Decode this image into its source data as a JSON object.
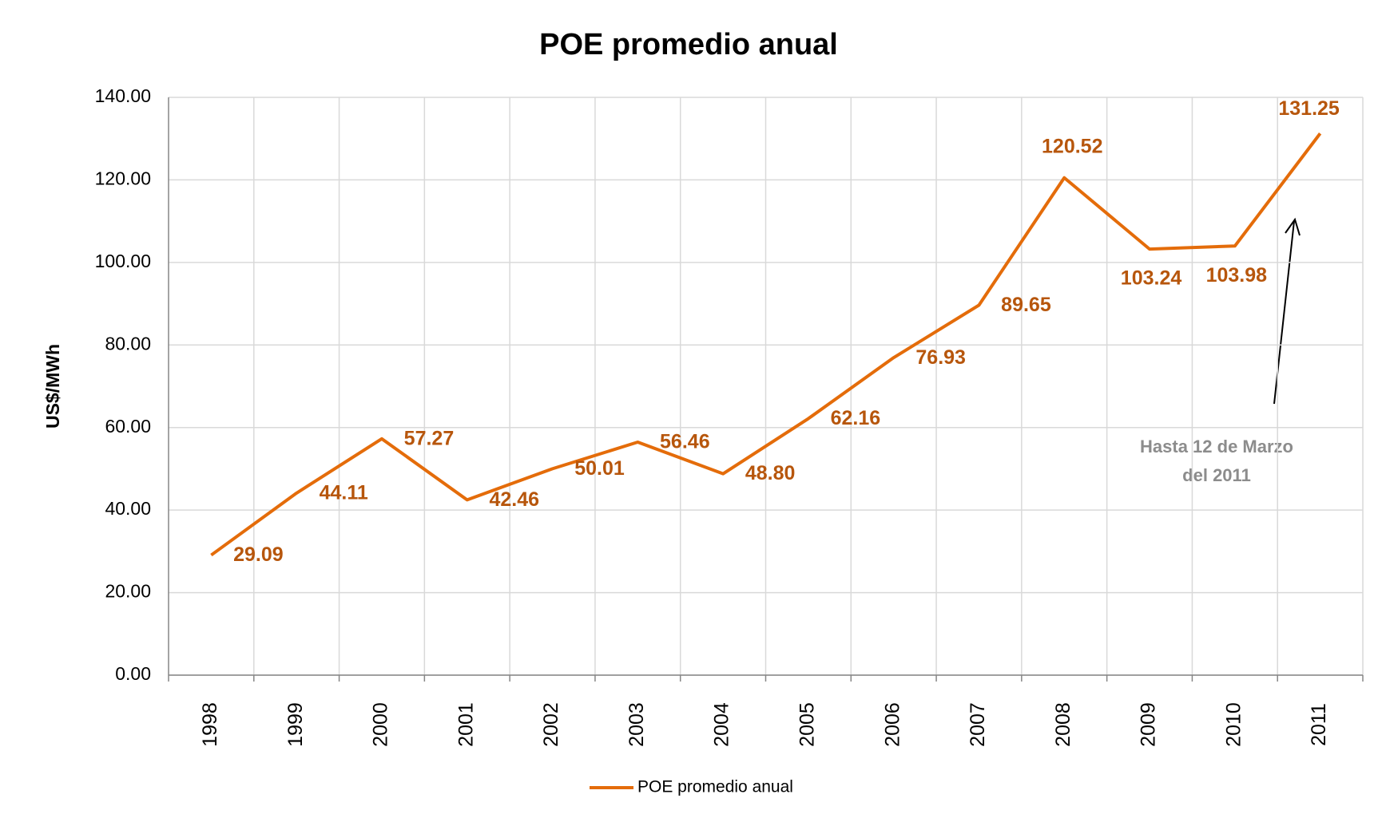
{
  "chart_data": {
    "type": "line",
    "title": "POE promedio anual",
    "ylabel": "US$/MWh",
    "categories": [
      "1998",
      "1999",
      "2000",
      "2001",
      "2002",
      "2003",
      "2004",
      "2005",
      "2006",
      "2007",
      "2008",
      "2009",
      "2010",
      "2011"
    ],
    "series": [
      {
        "name": "POE promedio anual",
        "color": "#e46c0a",
        "values": [
          29.09,
          44.11,
          57.27,
          42.46,
          50.01,
          56.46,
          48.8,
          62.16,
          76.93,
          89.65,
          120.52,
          103.24,
          103.98,
          131.25
        ],
        "value_labels": [
          "29.09",
          "44.11",
          "57.27",
          "42.46",
          "50.01",
          "56.46",
          "48.80",
          "62.16",
          "76.93",
          "89.65",
          "120.52",
          "103.24",
          "103.98",
          "131.25"
        ]
      }
    ],
    "ylim": [
      0,
      140
    ],
    "yticks": [
      {
        "value": 0,
        "label": "0.00"
      },
      {
        "value": 20,
        "label": "20.00"
      },
      {
        "value": 40,
        "label": "40.00"
      },
      {
        "value": 60,
        "label": "60.00"
      },
      {
        "value": 80,
        "label": "80.00"
      },
      {
        "value": 100,
        "label": "100.00"
      },
      {
        "value": 120,
        "label": "120.00"
      },
      {
        "value": 140,
        "label": "140.00"
      }
    ],
    "grid": true,
    "legend": "bottom",
    "annotation": [
      "Hasta  12 de Marzo",
      "del 2011"
    ]
  }
}
